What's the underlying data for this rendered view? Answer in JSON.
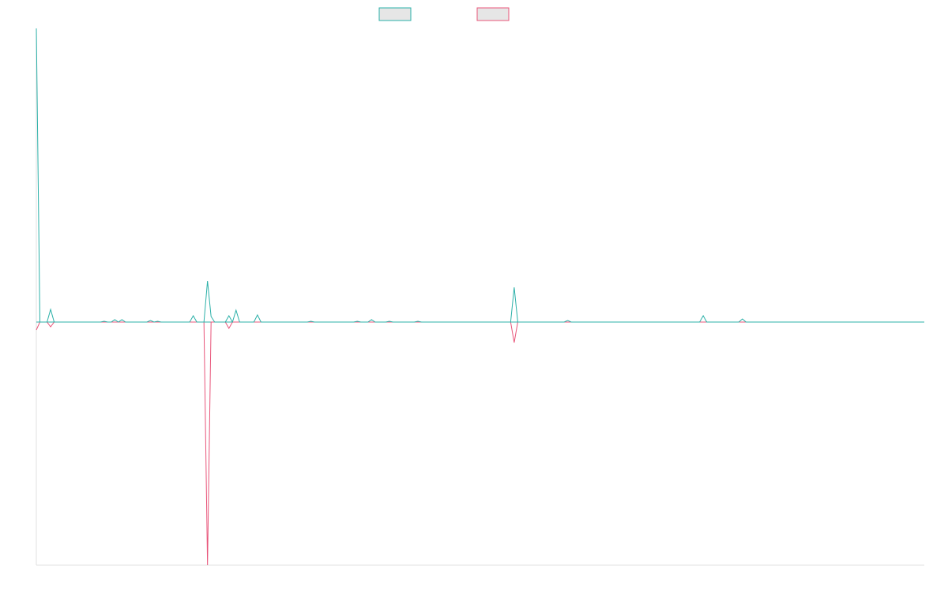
{
  "chart_data": {
    "type": "line",
    "ylim": [
      -308,
      372
    ],
    "series": [
      {
        "color": "#e8557a",
        "values": [
          -10,
          0,
          0,
          0,
          -6,
          0,
          0,
          0,
          0,
          0,
          0,
          0,
          0,
          0,
          0,
          0,
          0,
          0,
          0,
          0,
          0,
          0,
          0,
          0,
          0,
          0,
          0,
          0,
          0,
          0,
          0,
          0,
          0,
          0,
          0,
          0,
          0,
          0,
          0,
          0,
          0,
          0,
          0,
          0,
          0,
          0,
          0,
          0,
          -308,
          0,
          0,
          0,
          0,
          0,
          -8,
          0,
          0,
          0,
          0,
          0,
          0,
          0,
          0,
          0,
          0,
          0,
          0,
          0,
          0,
          0,
          0,
          0,
          0,
          0,
          0,
          0,
          0,
          0,
          0,
          0,
          0,
          0,
          0,
          0,
          0,
          0,
          0,
          0,
          0,
          0,
          0,
          0,
          0,
          0,
          0,
          0,
          0,
          0,
          0,
          0,
          0,
          0,
          0,
          0,
          0,
          0,
          0,
          0,
          0,
          0,
          0,
          0,
          0,
          0,
          0,
          0,
          0,
          0,
          0,
          0,
          0,
          0,
          0,
          0,
          0,
          0,
          0,
          0,
          0,
          0,
          0,
          0,
          0,
          0,
          -26,
          0,
          0,
          0,
          0,
          0,
          0,
          0,
          0,
          0,
          0,
          0,
          0,
          0,
          0,
          0,
          0,
          0,
          0,
          0,
          0,
          0,
          0,
          0,
          0,
          0,
          0,
          0,
          0,
          0,
          0,
          0,
          0,
          0,
          0,
          0,
          0,
          0,
          0,
          0,
          0,
          0,
          0,
          0,
          0,
          0,
          0,
          0,
          0,
          0,
          0,
          0,
          0,
          0,
          0,
          0,
          0,
          0,
          0,
          0,
          0,
          0,
          0,
          0,
          0,
          0,
          0,
          0,
          0,
          0,
          0,
          0,
          0,
          0,
          0,
          0,
          0,
          0,
          0,
          0,
          0,
          0,
          0,
          0,
          0,
          0,
          0,
          0,
          0,
          0,
          0,
          0,
          0,
          0,
          0,
          0,
          0,
          0,
          0,
          0,
          0,
          0,
          0,
          0,
          0,
          0,
          0,
          0,
          0,
          0,
          0,
          0,
          0,
          0,
          0,
          0
        ]
      },
      {
        "color": "#2bb0a8",
        "values": [
          372,
          0,
          0,
          0,
          16,
          0,
          0,
          0,
          0,
          0,
          0,
          0,
          0,
          0,
          0,
          0,
          0,
          0,
          0,
          1,
          0,
          0,
          3,
          0,
          3,
          0,
          0,
          0,
          0,
          0,
          0,
          0,
          2,
          0,
          1,
          0,
          0,
          0,
          0,
          0,
          0,
          0,
          0,
          0,
          8,
          0,
          0,
          0,
          52,
          7,
          0,
          0,
          0,
          0,
          8,
          0,
          15,
          0,
          0,
          0,
          0,
          0,
          9,
          0,
          0,
          0,
          0,
          0,
          0,
          0,
          0,
          0,
          0,
          0,
          0,
          0,
          0,
          1,
          0,
          0,
          0,
          0,
          0,
          0,
          0,
          0,
          0,
          0,
          0,
          0,
          1,
          0,
          0,
          0,
          3,
          0,
          0,
          0,
          0,
          1,
          0,
          0,
          0,
          0,
          0,
          0,
          0,
          1,
          0,
          0,
          0,
          0,
          0,
          0,
          0,
          0,
          0,
          0,
          0,
          0,
          0,
          0,
          0,
          0,
          0,
          0,
          0,
          0,
          0,
          0,
          0,
          0,
          0,
          0,
          44,
          0,
          0,
          0,
          0,
          0,
          0,
          0,
          0,
          0,
          0,
          0,
          0,
          0,
          0,
          2,
          0,
          0,
          0,
          0,
          0,
          0,
          0,
          0,
          0,
          0,
          0,
          0,
          0,
          0,
          0,
          0,
          0,
          0,
          0,
          0,
          0,
          0,
          0,
          0,
          0,
          0,
          0,
          0,
          0,
          0,
          0,
          0,
          0,
          0,
          0,
          0,
          0,
          8,
          0,
          0,
          0,
          0,
          0,
          0,
          0,
          0,
          0,
          0,
          4,
          0,
          0,
          0,
          0,
          0,
          0,
          0,
          0,
          0,
          0,
          0,
          0,
          0,
          0,
          0,
          0,
          0,
          0,
          0,
          0,
          0,
          0,
          0,
          0,
          0,
          0,
          0,
          0,
          0,
          0,
          0,
          0,
          0,
          0,
          0,
          0,
          0,
          0,
          0,
          0,
          0,
          0,
          0,
          0,
          0,
          0,
          0,
          0,
          0,
          0,
          0
        ]
      }
    ]
  }
}
